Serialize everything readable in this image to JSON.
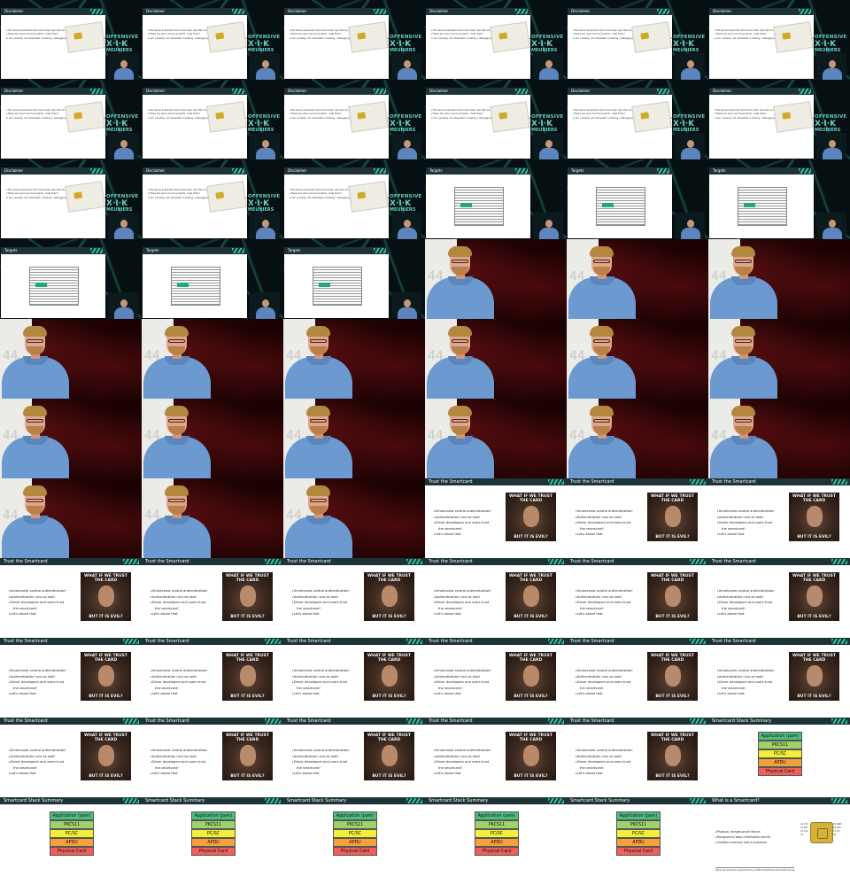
{
  "disclaimer": {
    "title": "Disclaimer",
    "bullets": [
      "The issues presented here have been reported and fixed!",
      "These are open source projects - help them!",
      "I am (usually) not interested in testing / debugging proprietary stuff in my spare time"
    ]
  },
  "targets": {
    "title": "Targets"
  },
  "logo": {
    "line1": "OFFENSIVE",
    "line2": "X·I·K",
    "line3": "MEUNIERS"
  },
  "screen_number": "44",
  "trust": {
    "title": "Trust the Smartcard",
    "bullets": [
      "Smartcards control authentication!",
      "Authentication runs as root!",
      "Driver developers and users trust",
      "the smartcard!",
      "Let's abuse that"
    ],
    "meme_top": "WHAT IF WE TRUST THE CARD",
    "meme_bottom": "BUT IT IS EVIL?"
  },
  "stack": {
    "title": "Smartcard Stack Summary",
    "layers": [
      {
        "label": "Application (pam)",
        "color": "#4fbf7f"
      },
      {
        "label": "PKCS11",
        "color": "#9fd36a"
      },
      {
        "label": "PC/SC",
        "color": "#f2ee3c"
      },
      {
        "label": "APDU",
        "color": "#f5a03a"
      },
      {
        "label": "Physical Card",
        "color": "#f0605a"
      }
    ]
  },
  "what": {
    "title": "What is a Smartcard?",
    "bullets": [
      "Physical, tamper-proof device",
      "Designed to keep information secret",
      "Contains memory and a processor"
    ],
    "url": "https://de.wikipedia.org/wiki/Smart_card#/media/File:SmartCardPinout.svg",
    "pins_left": [
      "C1 VCC",
      "C2 RST",
      "C3 CLK",
      "C4"
    ],
    "pins_right": [
      "C5 GND",
      "C6 VPP",
      "C7 I/O",
      "C8"
    ]
  },
  "cells": [
    "dis",
    "dis",
    "dis",
    "dis",
    "dis",
    "dis",
    "dis",
    "dis",
    "dis",
    "dis",
    "dis",
    "dis",
    "dis",
    "dis",
    "dis",
    "tar",
    "tar",
    "tar",
    "tar",
    "tar",
    "tar",
    "spk",
    "spk",
    "spk",
    "spk",
    "spk",
    "spk",
    "spk",
    "spk",
    "spk",
    "spk",
    "spk",
    "spk",
    "spk",
    "spk",
    "spk",
    "spk",
    "spk",
    "spk",
    "ts",
    "ts",
    "ts",
    "ts",
    "ts",
    "ts",
    "ts",
    "ts",
    "ts",
    "ts",
    "ts",
    "ts",
    "ts",
    "ts",
    "ts",
    "ts",
    "ts",
    "ts",
    "ts",
    "ts",
    "stk",
    "stk",
    "stk",
    "stk",
    "stk",
    "stk",
    "wi"
  ]
}
